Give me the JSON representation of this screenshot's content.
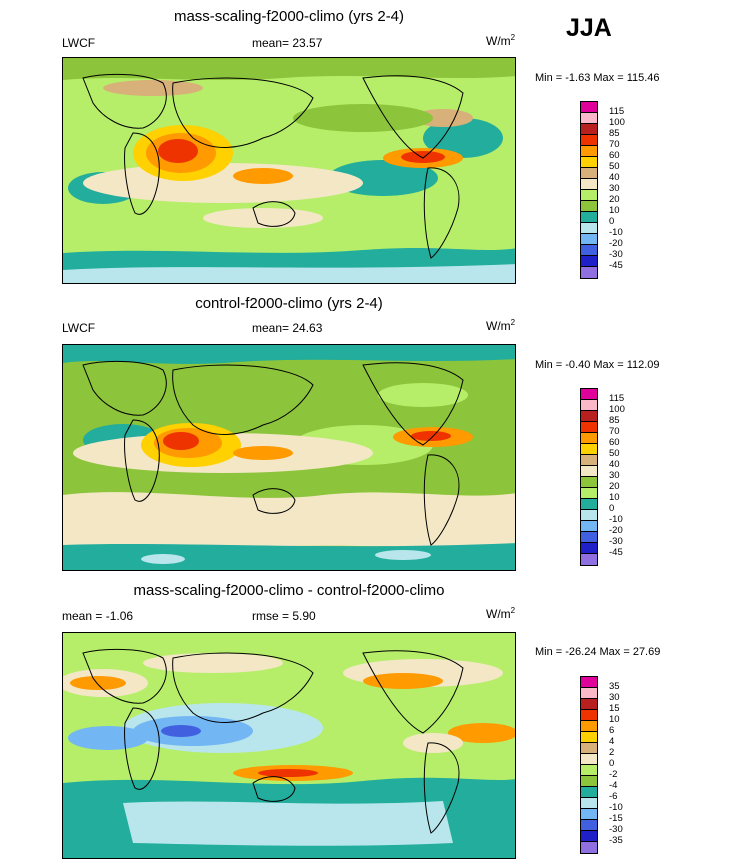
{
  "season": "JJA",
  "panels": [
    {
      "title": "mass-scaling-f2000-climo (yrs 2-4)",
      "left": "LWCF",
      "mean": "mean=  23.57",
      "units": "W/m",
      "units_sup": "2",
      "minmax": "Min =  -1.63 Max = 115.46",
      "levels": [
        "115",
        "100",
        "85",
        "70",
        "60",
        "50",
        "40",
        "30",
        "20",
        "10",
        "0",
        "-10",
        "-20",
        "-30",
        "-45"
      ],
      "colors": [
        "#e0009a",
        "#fbb8c8",
        "#b82020",
        "#ee3300",
        "#ff9a00",
        "#ffd100",
        "#d8b07a",
        "#f3e7c6",
        "#b6ee6a",
        "#8cc43c",
        "#22ad9c",
        "#b8e6ec",
        "#72b6f4",
        "#4060e0",
        "#2020c8",
        "#9070e0"
      ]
    },
    {
      "title": "control-f2000-climo (yrs 2-4)",
      "left": "LWCF",
      "mean": "mean=  24.63",
      "units": "W/m",
      "units_sup": "2",
      "minmax": "Min =  -0.40 Max = 112.09",
      "levels": [
        "115",
        "100",
        "85",
        "70",
        "60",
        "50",
        "40",
        "30",
        "20",
        "10",
        "0",
        "-10",
        "-20",
        "-30",
        "-45"
      ],
      "colors": [
        "#e0009a",
        "#fbb8c8",
        "#b82020",
        "#ee3300",
        "#ff9a00",
        "#ffd100",
        "#d8b07a",
        "#f3e7c6",
        "#8cc43c",
        "#b6ee6a",
        "#22ad9c",
        "#b8e6ec",
        "#72b6f4",
        "#4060e0",
        "#2020c8",
        "#9070e0"
      ]
    },
    {
      "title": "mass-scaling-f2000-climo - control-f2000-climo",
      "left": "mean =  -1.06",
      "mean": "rmse =   5.90",
      "units": "W/m",
      "units_sup": "2",
      "minmax": "Min = -26.24 Max =  27.69",
      "levels": [
        "35",
        "30",
        "15",
        "10",
        "6",
        "4",
        "2",
        "0",
        "-2",
        "-4",
        "-6",
        "-10",
        "-15",
        "-30",
        "-35"
      ],
      "colors": [
        "#e0009a",
        "#fbb8c8",
        "#b82020",
        "#ee3300",
        "#ff9a00",
        "#ffd100",
        "#d8b07a",
        "#f3e7c6",
        "#b6ee6a",
        "#8cc43c",
        "#22ad9c",
        "#b8e6ec",
        "#72b6f4",
        "#4060e0",
        "#2020c8",
        "#9070e0"
      ]
    }
  ],
  "chart_data": [
    {
      "type": "heatmap",
      "title": "mass-scaling-f2000-climo (yrs 2-4)",
      "variable": "LWCF",
      "season": "JJA",
      "mean": 23.57,
      "min": -1.63,
      "max": 115.46,
      "units": "W/m2",
      "contour_levels": [
        115,
        100,
        85,
        70,
        60,
        50,
        40,
        30,
        20,
        10,
        0,
        -10,
        -20,
        -30,
        -45
      ]
    },
    {
      "type": "heatmap",
      "title": "control-f2000-climo (yrs 2-4)",
      "variable": "LWCF",
      "season": "JJA",
      "mean": 24.63,
      "min": -0.4,
      "max": 112.09,
      "units": "W/m2",
      "contour_levels": [
        115,
        100,
        85,
        70,
        60,
        50,
        40,
        30,
        20,
        10,
        0,
        -10,
        -20,
        -30,
        -45
      ]
    },
    {
      "type": "heatmap",
      "title": "mass-scaling-f2000-climo - control-f2000-climo",
      "mean": -1.06,
      "rmse": 5.9,
      "min": -26.24,
      "max": 27.69,
      "units": "W/m2",
      "contour_levels": [
        35,
        30,
        15,
        10,
        6,
        4,
        2,
        0,
        -2,
        -4,
        -6,
        -10,
        -15,
        -30,
        -35
      ]
    }
  ]
}
